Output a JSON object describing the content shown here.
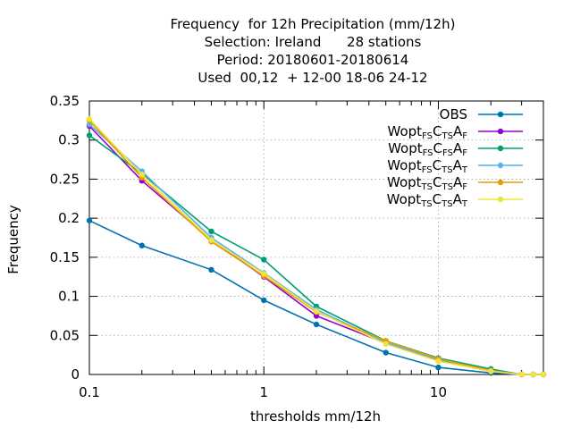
{
  "chart_data": {
    "type": "line",
    "title_lines": [
      "Frequency  for 12h Precipitation (mm/12h)",
      "Selection: Ireland      28 stations",
      "Period: 20180601-20180614",
      "Used  00,12  + 12-00 18-06 24-12"
    ],
    "xlabel": "thresholds mm/12h",
    "ylabel": "Frequency",
    "x_scale": "log",
    "xlim": [
      0.1,
      40
    ],
    "ylim": [
      0,
      0.35
    ],
    "x_ticks": [
      {
        "value": 0.1,
        "label": "0.1"
      },
      {
        "value": 1,
        "label": "1"
      },
      {
        "value": 10,
        "label": "10"
      }
    ],
    "y_ticks": [
      {
        "value": 0,
        "label": "0"
      },
      {
        "value": 0.05,
        "label": "0.05"
      },
      {
        "value": 0.1,
        "label": "0.1"
      },
      {
        "value": 0.15,
        "label": "0.15"
      },
      {
        "value": 0.2,
        "label": "0.2"
      },
      {
        "value": 0.25,
        "label": "0.25"
      },
      {
        "value": 0.3,
        "label": "0.3"
      },
      {
        "value": 0.35,
        "label": "0.35"
      }
    ],
    "grid": true,
    "legend_position": "top-right",
    "x": [
      0.1,
      0.2,
      0.5,
      1,
      2,
      5,
      10,
      20,
      30,
      35,
      40
    ],
    "series": [
      {
        "name": "OBS",
        "legend": {
          "base": "OBS",
          "parts": []
        },
        "color": "#0072b2",
        "values": [
          0.197,
          0.165,
          0.134,
          0.095,
          0.064,
          0.028,
          0.009,
          0.002,
          0.0,
          0.0,
          0.0
        ]
      },
      {
        "name": "Wopt FS C TS A F",
        "legend": {
          "base": "Wopt",
          "parts": [
            [
              "",
              "FS"
            ],
            [
              "C",
              "TS"
            ],
            [
              "A",
              "F"
            ]
          ]
        },
        "color": "#9400d3",
        "values": [
          0.318,
          0.248,
          0.172,
          0.125,
          0.075,
          0.04,
          0.018,
          0.004,
          0.0,
          0.0,
          0.0
        ]
      },
      {
        "name": "Wopt FS C FS A F",
        "legend": {
          "base": "Wopt",
          "parts": [
            [
              "",
              "FS"
            ],
            [
              "C",
              "FS"
            ],
            [
              "A",
              "F"
            ]
          ]
        },
        "color": "#009e73",
        "values": [
          0.306,
          0.257,
          0.183,
          0.147,
          0.087,
          0.043,
          0.021,
          0.007,
          0.0,
          0.0,
          0.0
        ]
      },
      {
        "name": "Wopt FS C TS A T",
        "legend": {
          "base": "Wopt",
          "parts": [
            [
              "",
              "FS"
            ],
            [
              "C",
              "TS"
            ],
            [
              "A",
              "T"
            ]
          ]
        },
        "color": "#56b4e9",
        "values": [
          0.32,
          0.26,
          0.175,
          0.13,
          0.083,
          0.041,
          0.019,
          0.005,
          0.0,
          0.0,
          0.0
        ]
      },
      {
        "name": "Wopt TS C TS A F",
        "legend": {
          "base": "Wopt",
          "parts": [
            [
              "",
              "TS"
            ],
            [
              "C",
              "TS"
            ],
            [
              "A",
              "F"
            ]
          ]
        },
        "color": "#e69f00",
        "values": [
          0.325,
          0.252,
          0.17,
          0.126,
          0.08,
          0.043,
          0.02,
          0.005,
          0.0,
          0.0,
          0.0
        ]
      },
      {
        "name": "Wopt TS C TS A T",
        "legend": {
          "base": "Wopt",
          "parts": [
            [
              "",
              "TS"
            ],
            [
              "C",
              "TS"
            ],
            [
              "A",
              "T"
            ]
          ]
        },
        "color": "#f0e442",
        "values": [
          0.327,
          0.256,
          0.172,
          0.129,
          0.081,
          0.039,
          0.017,
          0.004,
          0.0,
          0.0,
          0.0
        ]
      }
    ]
  }
}
